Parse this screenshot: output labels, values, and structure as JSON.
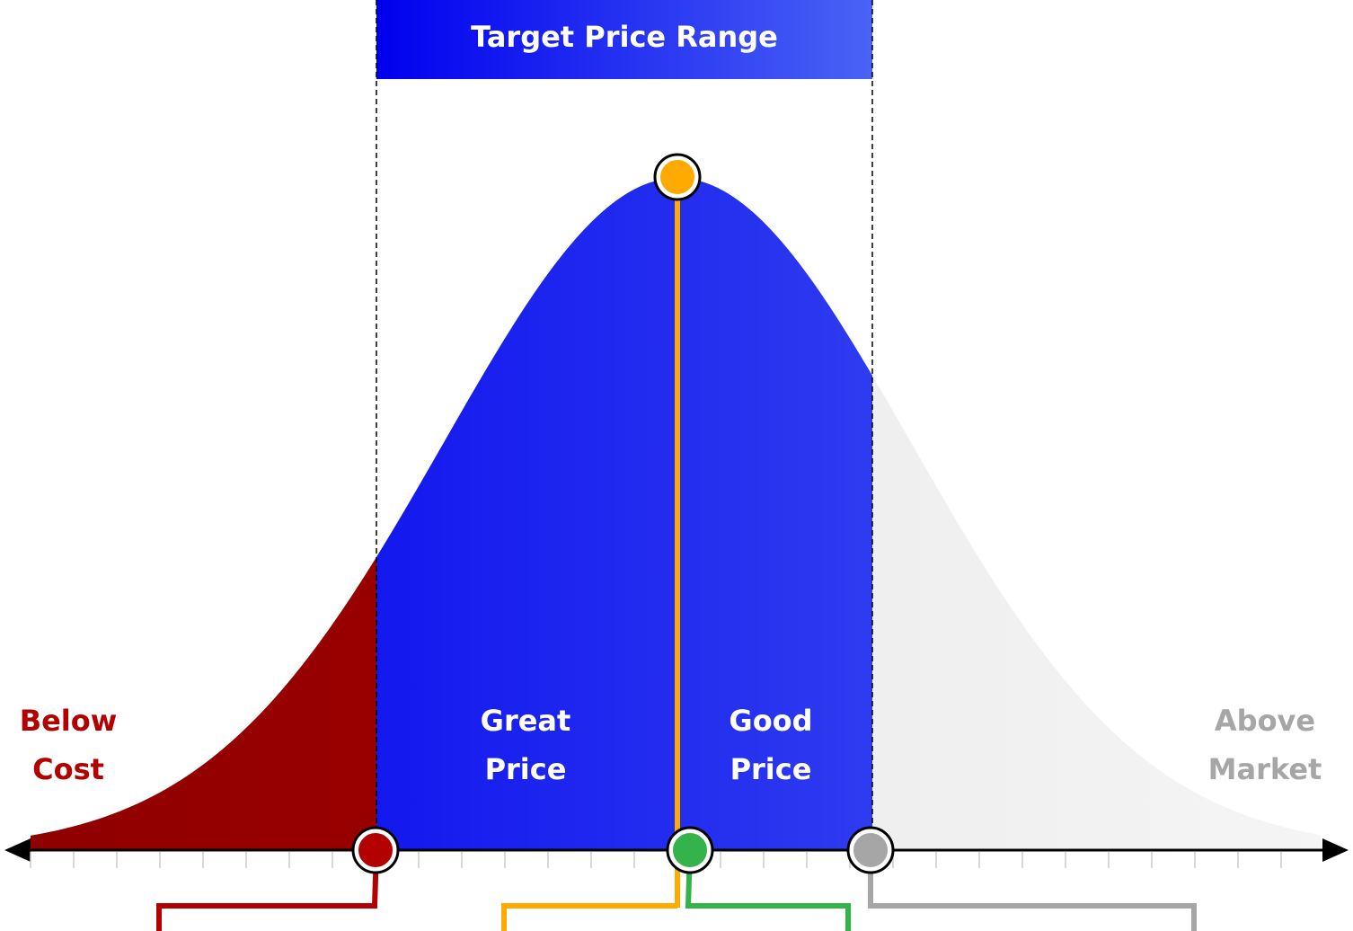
{
  "banner": {
    "label": "Target Price Range"
  },
  "regions": {
    "below_cost": {
      "line1": "Below",
      "line2": "Cost"
    },
    "great_price": {
      "line1": "Great",
      "line2": "Price"
    },
    "good_price": {
      "line1": "Good",
      "line2": "Price"
    },
    "above_market": {
      "line1": "Above",
      "line2": "Market"
    }
  },
  "colors": {
    "below_cost": "#b30000",
    "target_range_start": "#0000ee",
    "target_range_end": "#4a63f5",
    "above_market": "#e6e6e6",
    "above_market_label": "#a6a6a6",
    "optimal_marker": "#ffaa00",
    "good_marker": "#33b34a",
    "above_marker": "#a6a6a6",
    "axis": "#000000"
  }
}
